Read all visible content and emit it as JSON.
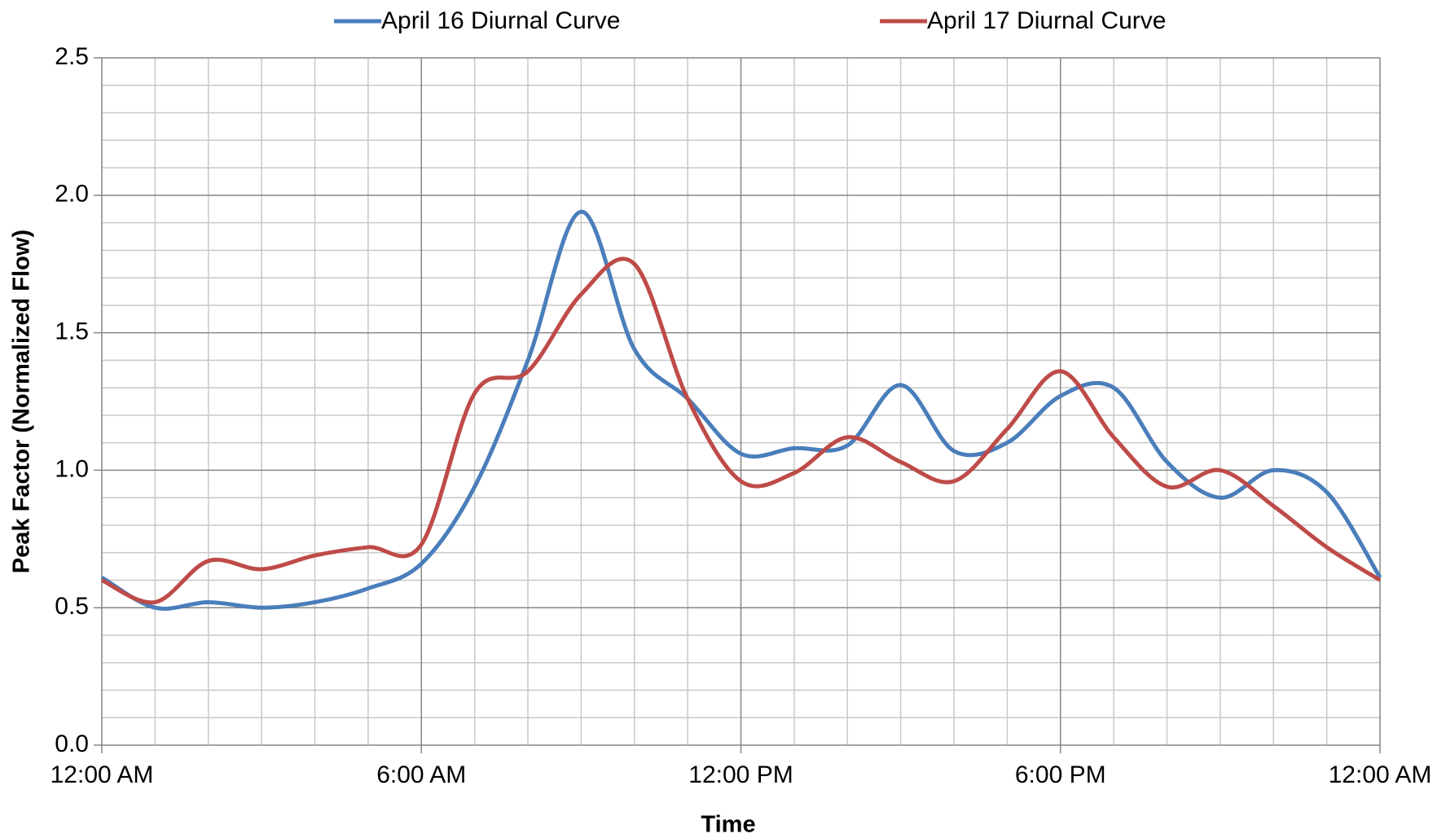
{
  "chart_data": {
    "type": "line",
    "xlabel": "Time",
    "ylabel": "Peak Factor (Normalized Flow)",
    "x": [
      0,
      1,
      2,
      3,
      4,
      5,
      6,
      7,
      8,
      9,
      10,
      11,
      12,
      13,
      14,
      15,
      16,
      17,
      18,
      19,
      20,
      21,
      22,
      23,
      24
    ],
    "series": [
      {
        "name": "April 16 Diurnal Curve",
        "color": "#4a7ebb",
        "values": [
          0.61,
          0.5,
          0.52,
          0.5,
          0.52,
          0.57,
          0.66,
          0.94,
          1.4,
          1.94,
          1.44,
          1.26,
          1.06,
          1.08,
          1.09,
          1.31,
          1.07,
          1.1,
          1.27,
          1.3,
          1.03,
          0.9,
          1.0,
          0.92,
          0.61
        ]
      },
      {
        "name": "April 17 Diurnal Curve",
        "color": "#be4b48",
        "values": [
          0.6,
          0.52,
          0.67,
          0.64,
          0.69,
          0.72,
          0.73,
          1.28,
          1.36,
          1.64,
          1.75,
          1.26,
          0.96,
          0.99,
          1.12,
          1.03,
          0.96,
          1.15,
          1.36,
          1.12,
          0.94,
          1.0,
          0.87,
          0.72,
          0.6
        ]
      }
    ],
    "xlim": [
      0,
      24
    ],
    "xticks": [
      {
        "value": 0,
        "label": "12:00 AM"
      },
      {
        "value": 6,
        "label": "6:00 AM"
      },
      {
        "value": 12,
        "label": "12:00 PM"
      },
      {
        "value": 18,
        "label": "6:00 PM"
      },
      {
        "value": 24,
        "label": "12:00 AM"
      }
    ],
    "ylim": [
      0,
      2.5
    ],
    "yticks": [
      {
        "value": 0,
        "label": "0.0"
      },
      0.5,
      {
        "value": 1,
        "label": "1.0"
      },
      1.5,
      {
        "value": 2,
        "label": "2.0"
      },
      2.5
    ],
    "grid": true,
    "legend": "top"
  }
}
